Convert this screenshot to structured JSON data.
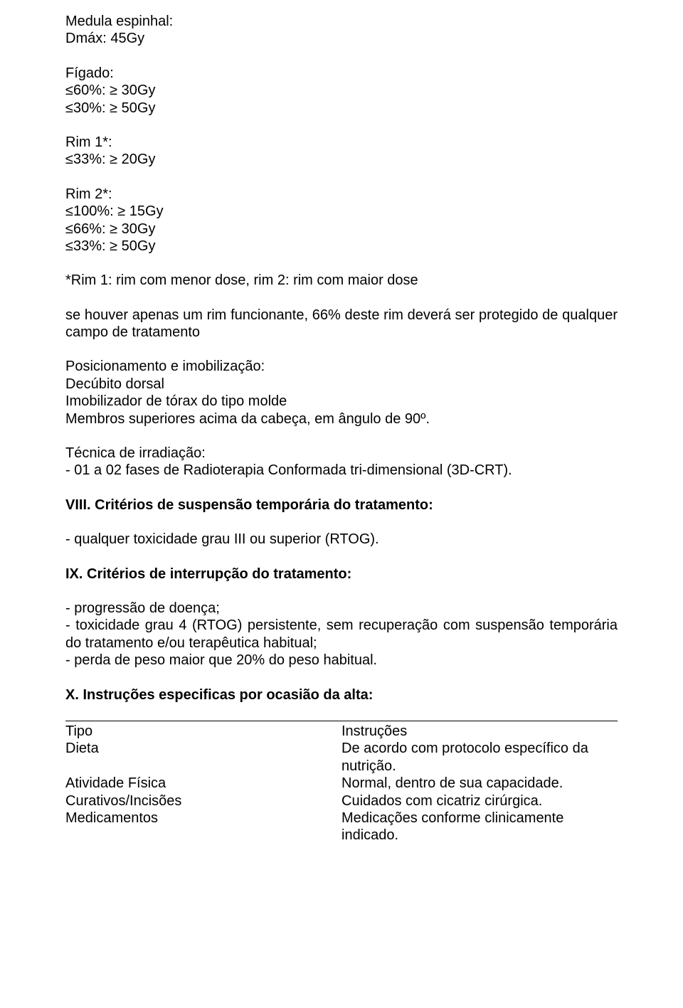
{
  "medula": {
    "title": "Medula espinhal:",
    "line1": "Dmáx: 45Gy"
  },
  "figado": {
    "title": "Fígado:",
    "line1": "≤60%: ≥ 30Gy",
    "line2": "≤30%: ≥ 50Gy"
  },
  "rim1": {
    "title": "Rim 1*:",
    "line1": "≤33%: ≥ 20Gy"
  },
  "rim2": {
    "title": "Rim 2*:",
    "line1": "≤100%: ≥ 15Gy",
    "line2": "≤66%: ≥ 30Gy",
    "line3": "≤33%: ≥ 50Gy"
  },
  "rim_note": "*Rim 1: rim com menor dose, rim 2: rim com maior dose",
  "rim_func": "se houver apenas um rim funcionante, 66% deste rim deverá ser protegido de qualquer campo de tratamento",
  "posic": {
    "title": "Posicionamento e imobilização:",
    "l1": "Decúbito dorsal",
    "l2": "Imobilizador de tórax do tipo molde",
    "l3": "Membros superiores acima da cabeça, em ângulo de 90º."
  },
  "tecnica": {
    "title": "Técnica de irradiação:",
    "l1": "- 01 a 02 fases de Radioterapia Conformada tri-dimensional (3D-CRT)."
  },
  "sec8": {
    "heading": "VIII. Critérios de suspensão temporária do tratamento:",
    "l1": "- qualquer toxicidade grau III ou superior (RTOG)."
  },
  "sec9": {
    "heading": "IX. Critérios de interrupção do tratamento:",
    "l1": "- progressão de doença;",
    "l2": "- toxicidade grau 4 (RTOG) persistente, sem recuperação com suspensão temporária do tratamento e/ou terapêutica habitual;",
    "l3": "- perda de peso maior que 20% do peso habitual."
  },
  "sec10": {
    "heading": "X. Instruções especificas por ocasião da alta:"
  },
  "table": {
    "header_left": "Tipo",
    "header_right": "Instruções",
    "rows": [
      {
        "left": "Dieta",
        "right": "De acordo com protocolo específico da nutrição."
      },
      {
        "left": "Atividade Física",
        "right": "Normal, dentro de sua capacidade."
      },
      {
        "left": "Curativos/Incisões",
        "right": "Cuidados com cicatriz cirúrgica."
      },
      {
        "left": "Medicamentos",
        "right": "Medicações conforme clinicamente indicado."
      }
    ]
  }
}
